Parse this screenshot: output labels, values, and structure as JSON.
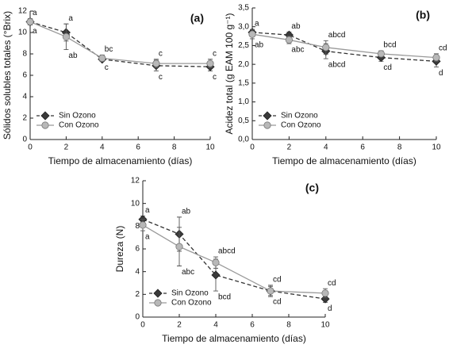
{
  "chart_data": [
    {
      "type": "line",
      "panel_label": "(a)",
      "y_label": "Sólidos solubles totales (°Brix)",
      "x_label": "Tiempo de almacenamiento (días)",
      "x": [
        0,
        2,
        4,
        7,
        10
      ],
      "xlim": [
        0,
        10
      ],
      "xticks": [
        0,
        2,
        4,
        6,
        8,
        10
      ],
      "ylim": [
        0,
        12
      ],
      "yticks": [
        0,
        2,
        4,
        6,
        8,
        10,
        12
      ],
      "legend": "lower left",
      "series": [
        {
          "name": "Sin Ozono",
          "color": "#3a3a3a",
          "marker": "diamond",
          "line_style": "dashed",
          "values": [
            11.0,
            10.0,
            7.5,
            6.9,
            6.8
          ],
          "errors": [
            0.3,
            0.8,
            0.2,
            0.5,
            0.4
          ],
          "labels": [
            "a",
            "a",
            "c",
            "c",
            "c"
          ]
        },
        {
          "name": "Con Ozono",
          "color": "#b8b8b8",
          "marker": "circle",
          "line_style": "solid",
          "values": [
            11.0,
            9.6,
            7.6,
            7.1,
            7.1
          ],
          "errors": [
            0.3,
            1.2,
            0.3,
            0.4,
            0.4
          ],
          "labels": [
            "a",
            "ab",
            "bc",
            "c",
            "c"
          ]
        }
      ]
    },
    {
      "type": "line",
      "panel_label": "(b)",
      "y_label": "Acidez total (g EAM 100 g⁻¹)",
      "x_label": "Tiempo de almacenamiento (días)",
      "x": [
        0,
        2,
        4,
        7,
        10
      ],
      "xlim": [
        0,
        10
      ],
      "xticks": [
        0,
        2,
        4,
        6,
        8,
        10
      ],
      "ylim": [
        0,
        3.5
      ],
      "yticks": [
        {
          "value": 0,
          "label": "0,0"
        },
        {
          "value": 0.5,
          "label": "0,5"
        },
        {
          "value": 1,
          "label": "1,0"
        },
        {
          "value": 1.5,
          "label": "1,5"
        },
        {
          "value": 2,
          "label": "2,0"
        },
        {
          "value": 2.5,
          "label": "2,5"
        },
        {
          "value": 3,
          "label": "3,0"
        },
        {
          "value": 3.5,
          "label": "3,5"
        }
      ],
      "legend": "lower left",
      "series": [
        {
          "name": "Sin Ozono",
          "color": "#3a3a3a",
          "marker": "diamond",
          "line_style": "dashed",
          "values": [
            2.85,
            2.78,
            2.35,
            2.18,
            2.08
          ],
          "errors": [
            0.08,
            0.08,
            0.2,
            0.1,
            0.15
          ],
          "labels": [
            "a",
            "ab",
            "abcd",
            "cd",
            "d"
          ]
        },
        {
          "name": "Con Ozono",
          "color": "#b8b8b8",
          "marker": "circle",
          "line_style": "solid",
          "values": [
            2.8,
            2.65,
            2.45,
            2.28,
            2.18
          ],
          "errors": [
            0.12,
            0.1,
            0.18,
            0.08,
            0.1
          ],
          "labels": [
            "ab",
            "abc",
            "abcd",
            "bcd",
            "cd"
          ]
        }
      ]
    },
    {
      "type": "line",
      "panel_label": "(c)",
      "y_label": "Dureza (N)",
      "x_label": "Tiempo de almacenamiento (días)",
      "x": [
        0,
        2,
        4,
        7,
        10
      ],
      "xlim": [
        0,
        10
      ],
      "xticks": [
        0,
        2,
        4,
        6,
        8,
        10
      ],
      "ylim": [
        0,
        12
      ],
      "yticks": [
        0,
        2,
        4,
        6,
        8,
        10,
        12
      ],
      "legend": "lower left",
      "series": [
        {
          "name": "Sin Ozono",
          "color": "#3a3a3a",
          "marker": "diamond",
          "line_style": "dashed",
          "values": [
            8.6,
            7.3,
            3.7,
            2.3,
            1.6
          ],
          "errors": [
            0.3,
            1.5,
            1.4,
            0.5,
            0.3
          ],
          "labels": [
            "a",
            "ab",
            "bcd",
            "cd",
            "d"
          ]
        },
        {
          "name": "Con Ozono",
          "color": "#b8b8b8",
          "marker": "circle",
          "line_style": "solid",
          "values": [
            8.1,
            6.2,
            4.8,
            2.3,
            2.1
          ],
          "errors": [
            0.5,
            1.7,
            0.5,
            0.4,
            0.4
          ],
          "labels": [
            "a",
            "abc",
            "abcd",
            "cd",
            "cd"
          ]
        }
      ]
    }
  ]
}
